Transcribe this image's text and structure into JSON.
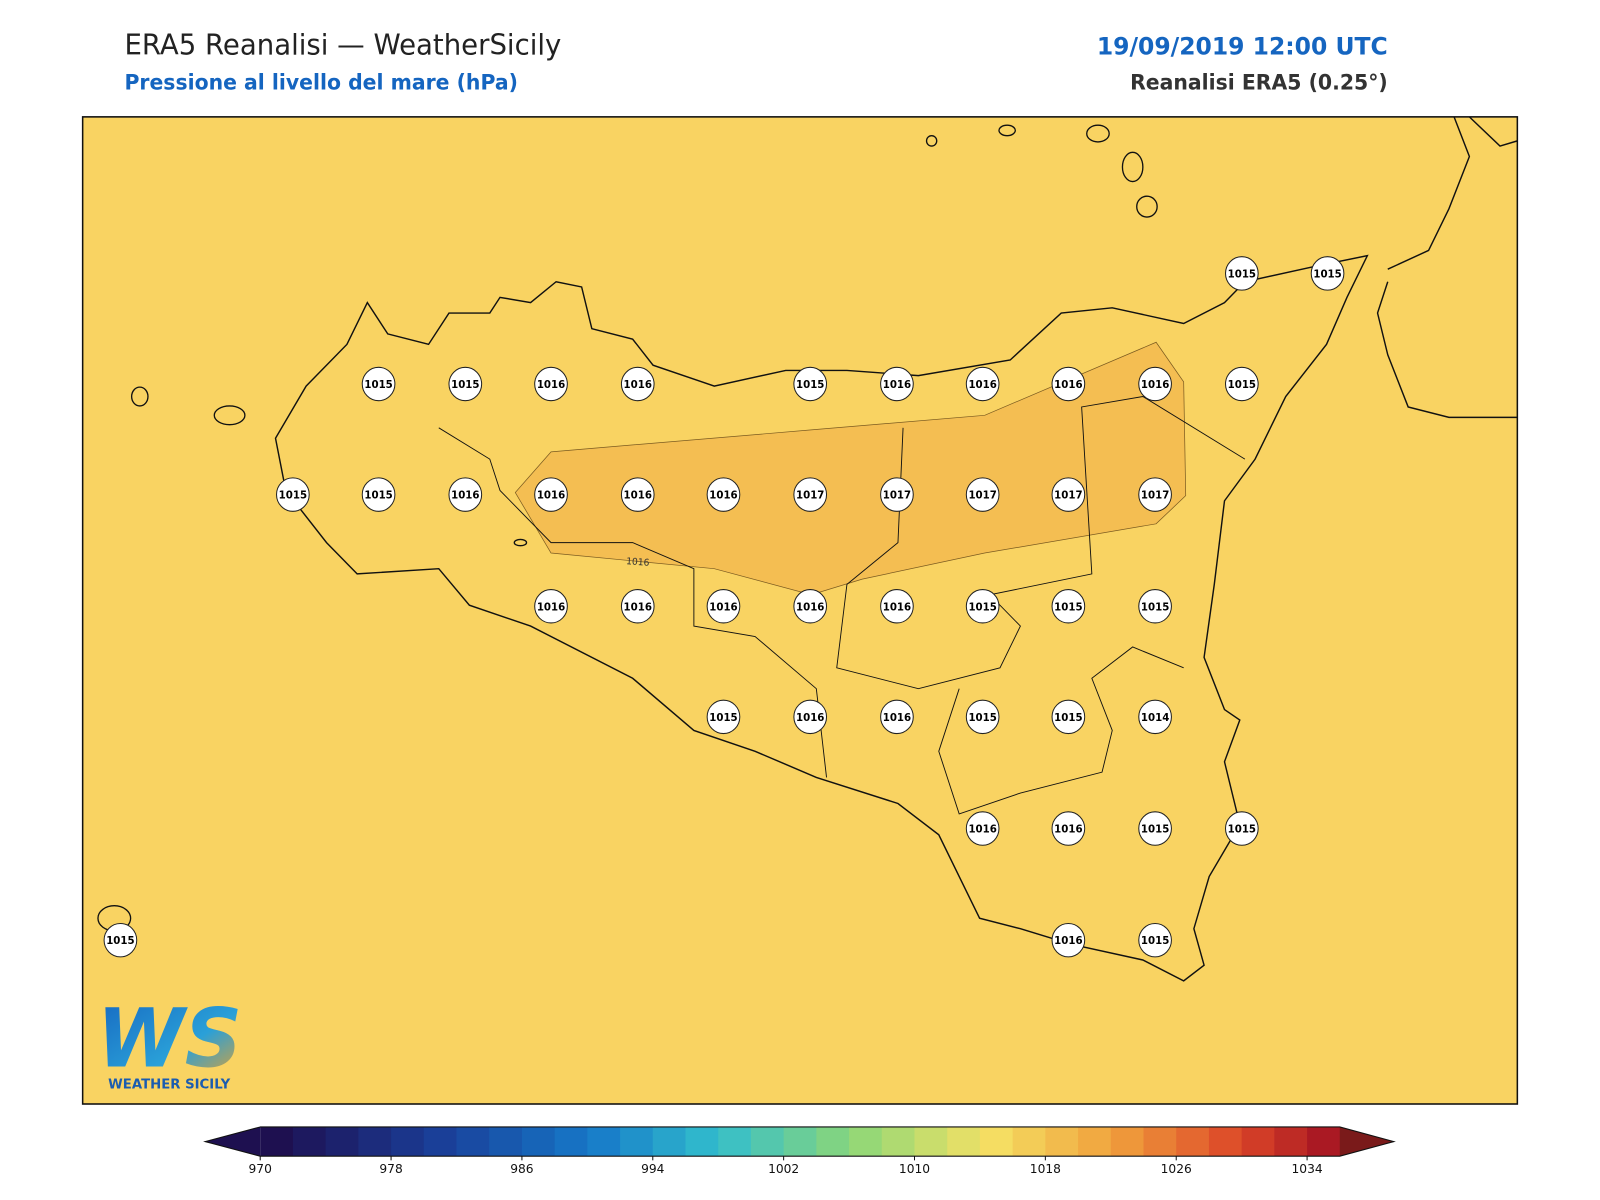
{
  "header": {
    "title": "ERA5 Reanalisi — WeatherSicily",
    "subtitle": "Pressione al livello del mare (hPa)",
    "datetime": "19/09/2019 12:00 UTC",
    "source": "Reanalisi ERA5 (0.25°)"
  },
  "map": {
    "stations": [
      1015,
      1015,
      1015,
      1015,
      1016,
      1016,
      1015,
      1016,
      1016,
      1016,
      1016,
      1015,
      1015,
      1015,
      1016,
      1016,
      1016,
      1016,
      1017,
      1017,
      1017,
      1017,
      1017,
      1016,
      1016,
      1016,
      1016,
      1016,
      1015,
      1015,
      1015,
      1015,
      1016,
      1016,
      1015,
      1015,
      1014,
      1016,
      1016,
      1015,
      1015,
      1015,
      1016,
      1015
    ],
    "contour_label": "1016"
  },
  "colorbar": {
    "range": [
      970,
      1036
    ],
    "ticks": [
      970,
      978,
      986,
      994,
      1002,
      1010,
      1018,
      1026,
      1034
    ]
  },
  "logo": {
    "mark": "WS",
    "text": "WEATHER SICILY"
  }
}
